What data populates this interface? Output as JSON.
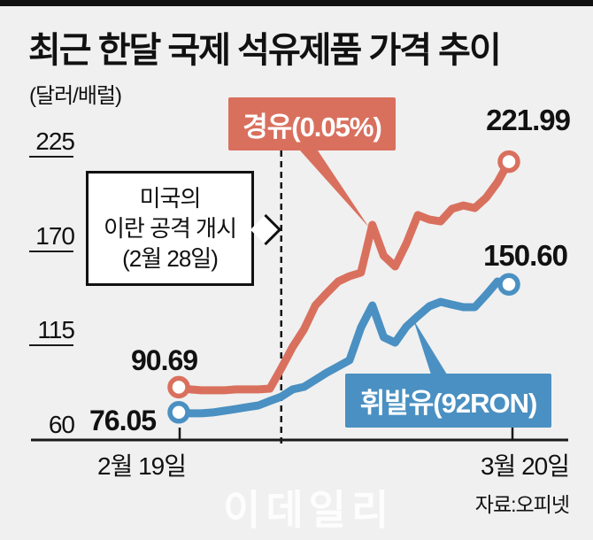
{
  "title": "최근 한달 국제 석유제품 가격 추이",
  "unit": "(달러/배럴)",
  "source": "자료:오피넷",
  "watermark": "이데일리",
  "annotation": {
    "line1": "미국의",
    "line2": "이란 공격 개시",
    "line3": "(2월 28일)"
  },
  "colors": {
    "diesel": "#d9705e",
    "gasoline": "#4a90c2",
    "background": "#f0f0f0",
    "axis": "#1a1a1a"
  },
  "chart_data": {
    "type": "line",
    "title": "최근 한달 국제 석유제품 가격 추이",
    "ylabel": "(달러/배럴)",
    "x_axis": {
      "start_label": "2월 19일",
      "end_label": "3월 20일",
      "num_points": 30
    },
    "y_axis": {
      "ticks": [
        225,
        170,
        115,
        60
      ],
      "range": [
        60,
        235
      ]
    },
    "event": {
      "label": "미국의 이란 공격 개시 (2월 28일)",
      "day_index": 9
    },
    "legend_position": "callout-boxes",
    "grid": false,
    "series": [
      {
        "name": "경유(0.05%)",
        "color": "#d9705e",
        "start_label": "90.69",
        "end_label": "221.99",
        "values": [
          90.69,
          89.4,
          88.9,
          88.9,
          88.9,
          89.4,
          89.4,
          89.4,
          89.9,
          101.7,
          114.1,
          124.4,
          138.3,
          145.5,
          152.2,
          155.3,
          157.4,
          185.2,
          167.2,
          161.0,
          174.4,
          190.9,
          188.3,
          187.2,
          194.5,
          196.5,
          195.0,
          201.0,
          210.0,
          221.99
        ]
      },
      {
        "name": "휘발유(92RON)",
        "color": "#4a90c2",
        "start_label": "76.05",
        "end_label": "150.60",
        "values": [
          76.05,
          75.5,
          75.5,
          76.0,
          77.0,
          78.0,
          79.1,
          80.1,
          82.7,
          85.2,
          89.4,
          90.9,
          95.0,
          99.2,
          102.8,
          106.4,
          125.4,
          138.3,
          119.8,
          116.7,
          126.0,
          132.1,
          137.8,
          140.4,
          138.8,
          137.3,
          137.3,
          144.5,
          152.2,
          150.6
        ]
      }
    ]
  }
}
